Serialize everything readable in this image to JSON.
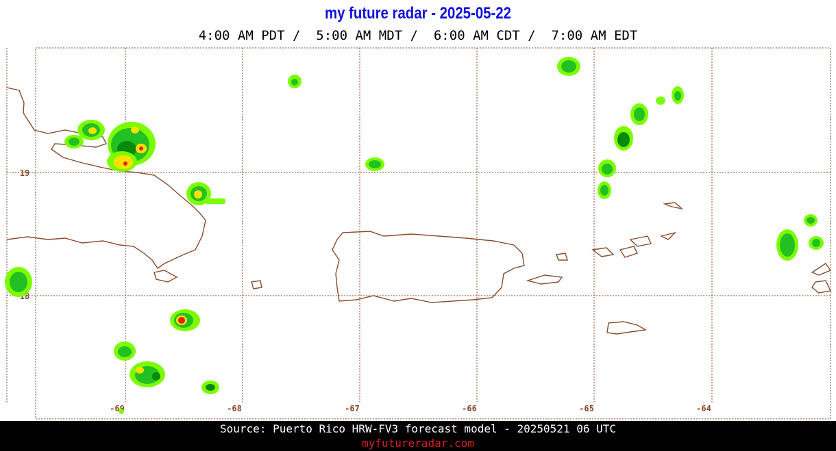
{
  "header": {
    "title": "my future radar - 2025-05-22",
    "times": "4:00 AM PDT /  5:00 AM MDT /  6:00 AM CDT /  7:00 AM EDT"
  },
  "map": {
    "lat_labels": [
      "19",
      "18"
    ],
    "lon_labels": [
      "-69",
      "-68",
      "-67",
      "-66",
      "-65",
      "-64"
    ]
  },
  "footer": {
    "source": "Source: Puerto Rico HRW-FV3 forecast model - 20250521 06 UTC",
    "site": "myfutureradar.com"
  }
}
